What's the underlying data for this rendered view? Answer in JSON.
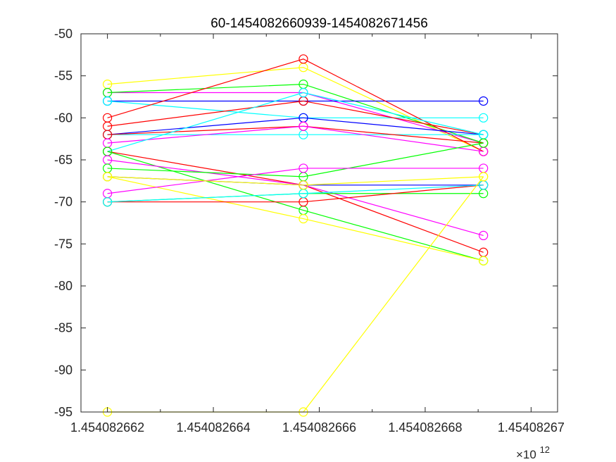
{
  "chart_data": {
    "type": "line",
    "title": "60-1454082660939-1454082671456",
    "x_exponent_label": "×10",
    "x_exponent_power": "12",
    "xlim": [
      1.4540826615,
      1.4540826705
    ],
    "ylim": [
      -95,
      -50
    ],
    "x_ticks": [
      1.454082662,
      1.454082664,
      1.454082666,
      1.454082668,
      1.45408267
    ],
    "x_tick_labels": [
      "1.454082662",
      "1.454082664",
      "1.454082666",
      "1.454082668",
      "1.45408267"
    ],
    "y_ticks": [
      -95,
      -90,
      -85,
      -80,
      -75,
      -70,
      -65,
      -60,
      -55,
      -50
    ],
    "y_tick_labels": [
      "-95",
      "-90",
      "-85",
      "-80",
      "-75",
      "-70",
      "-65",
      "-60",
      "-55",
      "-50"
    ],
    "x": [
      1.454082662,
      1.4540826657,
      1.4540826691
    ],
    "grid": false,
    "legend": "none",
    "series": [
      {
        "color": "#ffff00",
        "values": [
          -56,
          -54,
          -64
        ]
      },
      {
        "color": "#ff00ff",
        "values": [
          -57,
          -57,
          -63
        ]
      },
      {
        "color": "#00ff00",
        "values": [
          -57,
          -56,
          -63
        ]
      },
      {
        "color": "#0000ff",
        "values": [
          -58,
          -58,
          -58
        ]
      },
      {
        "color": "#00ffff",
        "values": [
          -58,
          -60,
          -60
        ]
      },
      {
        "color": "#ff0000",
        "values": [
          -60,
          -53,
          -64
        ]
      },
      {
        "color": "#ff0000",
        "values": [
          -61,
          -58,
          -62
        ]
      },
      {
        "color": "#0000ff",
        "values": [
          -62,
          -60,
          -62
        ]
      },
      {
        "color": "#00ffff",
        "values": [
          -62,
          -62,
          -62
        ]
      },
      {
        "color": "#ff0000",
        "values": [
          -62,
          -61,
          -63
        ]
      },
      {
        "color": "#ff00ff",
        "values": [
          -63,
          -61,
          -64
        ]
      },
      {
        "color": "#00ffff",
        "values": [
          -64,
          -57,
          -62
        ]
      },
      {
        "color": "#ff0000",
        "values": [
          -64,
          -68,
          -76
        ]
      },
      {
        "color": "#00ff00",
        "values": [
          -64,
          -71,
          -77
        ]
      },
      {
        "color": "#ff00ff",
        "values": [
          -65,
          -68,
          -74
        ]
      },
      {
        "color": "#00ff00",
        "values": [
          -66,
          -67,
          -63
        ]
      },
      {
        "color": "#0000ff",
        "values": [
          -67,
          -68,
          -68
        ]
      },
      {
        "color": "#ffff00",
        "values": [
          -67,
          -72,
          -77
        ]
      },
      {
        "color": "#ff00ff",
        "values": [
          -69,
          -66,
          -66
        ]
      },
      {
        "color": "#00ff00",
        "values": [
          -70,
          -69,
          -69
        ]
      },
      {
        "color": "#ff0000",
        "values": [
          -70,
          -70,
          -68
        ]
      },
      {
        "color": "#00ffff",
        "values": [
          -70,
          -69,
          -68
        ]
      },
      {
        "color": "#ffff00",
        "values": [
          -95,
          -95,
          -67
        ]
      },
      {
        "color": "#ffff00",
        "values": [
          -67,
          -68,
          -67
        ]
      }
    ]
  }
}
